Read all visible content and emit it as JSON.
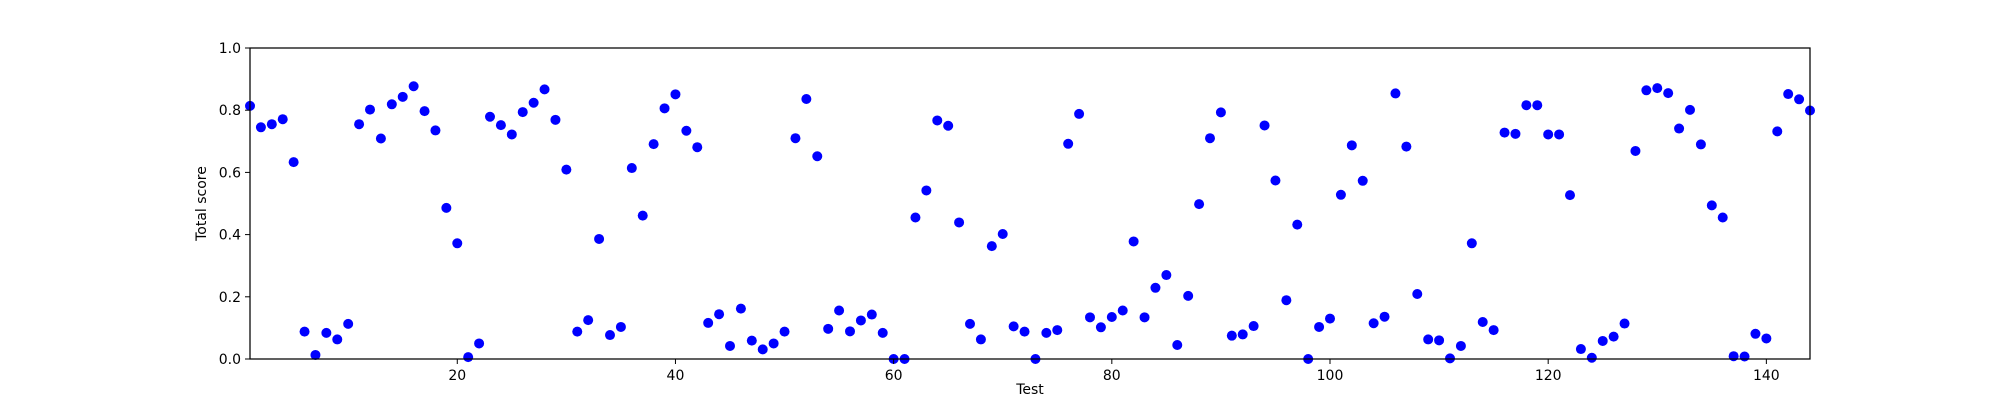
{
  "chart_data": {
    "type": "scatter",
    "title": "",
    "xlabel": "Test",
    "ylabel": "Total score",
    "xlim": [
      1,
      144
    ],
    "ylim": [
      0.0,
      1.0
    ],
    "grid": false,
    "x_ticks": [
      20,
      40,
      60,
      80,
      100,
      120,
      140
    ],
    "x_tick_labels": [
      "20",
      "40",
      "60",
      "80",
      "100",
      "120",
      "140"
    ],
    "y_ticks": [
      0.0,
      0.2,
      0.4,
      0.6,
      0.8,
      1.0
    ],
    "y_tick_labels": [
      "0.0",
      "0.2",
      "0.4",
      "0.6",
      "0.8",
      "1.0"
    ],
    "marker_color": "#0000ff",
    "series": [
      {
        "x": [
          1,
          2,
          3,
          4,
          5,
          6,
          7,
          8,
          9,
          10,
          11,
          12,
          13,
          14,
          15,
          16,
          17,
          18,
          19,
          20,
          21,
          22,
          23,
          24,
          25,
          26,
          27,
          28,
          29,
          30,
          31,
          32,
          33,
          34,
          35,
          36,
          37,
          38,
          39,
          40,
          41,
          42,
          43,
          44,
          45,
          46,
          47,
          48,
          49,
          50,
          51,
          52,
          53,
          54,
          55,
          56,
          57,
          58,
          59,
          60,
          61,
          62,
          63,
          64,
          65,
          66,
          67,
          68,
          69,
          70,
          71,
          72,
          73,
          74,
          75,
          76,
          77,
          78,
          79,
          80,
          81,
          82,
          83,
          84,
          85,
          86,
          87,
          88,
          89,
          90,
          91,
          92,
          93,
          94,
          95,
          96,
          97,
          98,
          99,
          100,
          101,
          102,
          103,
          104,
          105,
          106,
          107,
          108,
          109,
          110,
          111,
          112,
          113,
          114,
          115,
          116,
          117,
          118,
          119,
          120,
          121,
          122,
          123,
          124,
          125,
          126,
          127,
          128,
          129,
          130,
          131,
          132,
          133,
          134,
          135,
          136,
          137,
          138,
          139,
          140,
          141,
          142,
          143,
          144
        ],
        "values": [
          0.814,
          0.745,
          0.755,
          0.771,
          0.633,
          0.088,
          0.013,
          0.084,
          0.063,
          0.113,
          0.755,
          0.802,
          0.709,
          0.819,
          0.843,
          0.877,
          0.797,
          0.735,
          0.486,
          0.372,
          0.006,
          0.05,
          0.779,
          0.752,
          0.722,
          0.794,
          0.824,
          0.867,
          0.769,
          0.609,
          0.088,
          0.125,
          0.386,
          0.077,
          0.103,
          0.614,
          0.461,
          0.691,
          0.806,
          0.851,
          0.734,
          0.681,
          0.116,
          0.144,
          0.042,
          0.162,
          0.059,
          0.031,
          0.05,
          0.088,
          0.71,
          0.836,
          0.652,
          0.097,
          0.156,
          0.089,
          0.124,
          0.143,
          0.084,
          0.0,
          0.0,
          0.455,
          0.542,
          0.767,
          0.75,
          0.439,
          0.113,
          0.063,
          0.363,
          0.402,
          0.105,
          0.088,
          0.0,
          0.084,
          0.093,
          0.692,
          0.788,
          0.134,
          0.102,
          0.135,
          0.156,
          0.378,
          0.134,
          0.229,
          0.27,
          0.045,
          0.203,
          0.498,
          0.71,
          0.793,
          0.075,
          0.079,
          0.106,
          0.751,
          0.574,
          0.189,
          0.432,
          0.0,
          0.103,
          0.13,
          0.528,
          0.687,
          0.573,
          0.115,
          0.136,
          0.854,
          0.683,
          0.209,
          0.063,
          0.06,
          0.002,
          0.042,
          0.372,
          0.119,
          0.093,
          0.728,
          0.724,
          0.816,
          0.816,
          0.722,
          0.722,
          0.527,
          0.032,
          0.004,
          0.058,
          0.072,
          0.114,
          0.669,
          0.864,
          0.871,
          0.855,
          0.741,
          0.801,
          0.69,
          0.494,
          0.455,
          0.009,
          0.008,
          0.081,
          0.066,
          0.732,
          0.852,
          0.835,
          0.799
        ]
      }
    ]
  }
}
